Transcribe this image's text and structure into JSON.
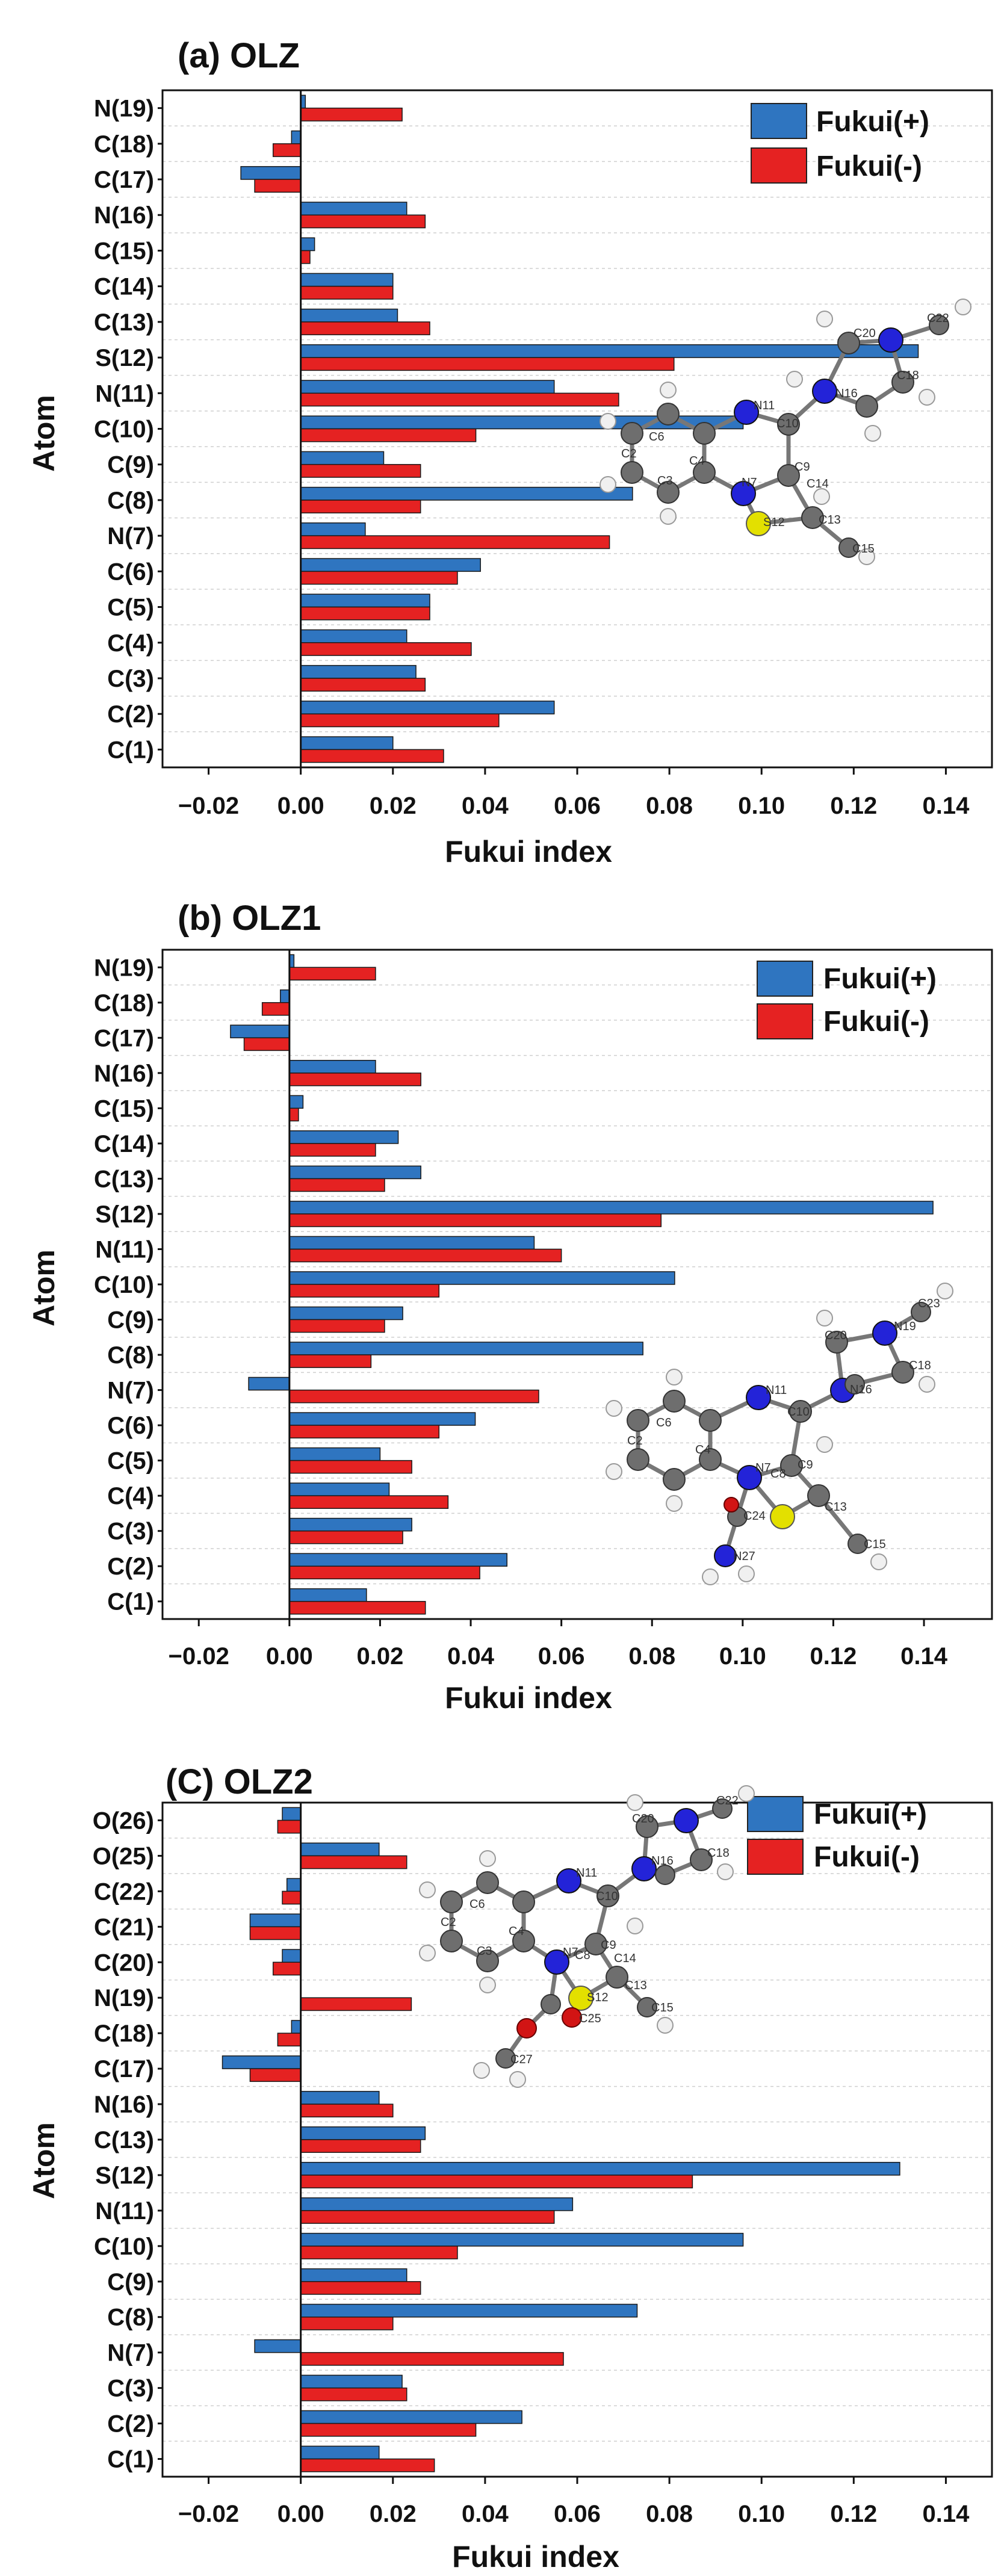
{
  "colors": {
    "fukui_plus": "#2f75c0",
    "fukui_minus": "#e52222",
    "grid": "#cfcfcf",
    "atom_c": "#6e6e6e",
    "atom_n": "#2323d8",
    "atom_s": "#e3e000",
    "atom_o": "#d21414",
    "atom_h": "#f0f0f0"
  },
  "chart_data": [
    {
      "type": "bar",
      "orientation": "horizontal",
      "title": "(a) OLZ",
      "xlabel": "Fukui index",
      "ylabel": "Atom",
      "xlim": [
        -0.03,
        0.15
      ],
      "xticks": [
        "-0.02",
        "0.00",
        "0.02",
        "0.04",
        "0.06",
        "0.08",
        "0.10",
        "0.12",
        "0.14"
      ],
      "grid": "horizontal dashed",
      "legend_position": "top-right",
      "categories": [
        "N(19)",
        "C(18)",
        "C(17)",
        "N(16)",
        "C(15)",
        "C(14)",
        "C(13)",
        "S(12)",
        "N(11)",
        "C(10)",
        "C(9)",
        "C(8)",
        "N(7)",
        "C(6)",
        "C(5)",
        "C(4)",
        "C(3)",
        "C(2)",
        "C(1)"
      ],
      "series": [
        {
          "name": "Fukui(+)",
          "values": [
            0.001,
            -0.002,
            -0.013,
            0.023,
            0.003,
            0.02,
            0.021,
            0.134,
            0.055,
            0.096,
            0.018,
            0.072,
            0.014,
            0.039,
            0.028,
            0.023,
            0.025,
            0.055,
            0.02
          ]
        },
        {
          "name": "Fukui(-)",
          "values": [
            0.022,
            -0.006,
            -0.01,
            0.027,
            0.002,
            0.02,
            0.028,
            0.081,
            0.069,
            0.038,
            0.026,
            0.026,
            0.067,
            0.034,
            0.028,
            0.037,
            0.027,
            0.043,
            0.031
          ]
        }
      ]
    },
    {
      "type": "bar",
      "orientation": "horizontal",
      "title": "(b) OLZ1",
      "xlabel": "Fukui index",
      "ylabel": "Atom",
      "xlim": [
        -0.028,
        0.155
      ],
      "xticks": [
        "-0.02",
        "0.00",
        "0.02",
        "0.04",
        "0.06",
        "0.08",
        "0.10",
        "0.12",
        "0.14"
      ],
      "grid": "horizontal dashed",
      "legend_position": "top-right",
      "categories": [
        "N(19)",
        "C(18)",
        "C(17)",
        "N(16)",
        "C(15)",
        "C(14)",
        "C(13)",
        "S(12)",
        "N(11)",
        "C(10)",
        "C(9)",
        "C(8)",
        "N(7)",
        "C(6)",
        "C(5)",
        "C(4)",
        "C(3)",
        "C(2)",
        "C(1)"
      ],
      "series": [
        {
          "name": "Fukui(+)",
          "values": [
            0.001,
            -0.002,
            -0.013,
            0.019,
            0.003,
            0.024,
            0.029,
            0.142,
            0.054,
            0.085,
            0.025,
            0.078,
            -0.009,
            0.041,
            0.02,
            0.022,
            0.027,
            0.048,
            0.017
          ]
        },
        {
          "name": "Fukui(-)",
          "values": [
            0.019,
            -0.006,
            -0.01,
            0.029,
            0.002,
            0.019,
            0.021,
            0.082,
            0.06,
            0.033,
            0.021,
            0.018,
            0.055,
            0.033,
            0.027,
            0.035,
            0.025,
            0.042,
            0.03
          ]
        }
      ]
    },
    {
      "type": "bar",
      "orientation": "horizontal",
      "title": "(C) OLZ2",
      "xlabel": "Fukui index",
      "ylabel": "Atom",
      "xlim": [
        -0.03,
        0.15
      ],
      "xticks": [
        "-0.02",
        "0.00",
        "0.02",
        "0.04",
        "0.06",
        "0.08",
        "0.10",
        "0.12",
        "0.14"
      ],
      "grid": "horizontal dashed",
      "legend_position": "top-right",
      "categories": [
        "O(26)",
        "O(25)",
        "C(22)",
        "C(21)",
        "C(20)",
        "N(19)",
        "C(18)",
        "C(17)",
        "N(16)",
        "C(13)",
        "S(12)",
        "N(11)",
        "C(10)",
        "C(9)",
        "C(8)",
        "N(7)",
        "C(3)",
        "C(2)",
        "C(1)"
      ],
      "series": [
        {
          "name": "Fukui(+)",
          "values": [
            -0.004,
            0.017,
            -0.003,
            -0.011,
            -0.004,
            0.0,
            -0.002,
            -0.017,
            0.017,
            0.027,
            0.13,
            0.059,
            0.096,
            0.023,
            0.073,
            -0.01,
            0.022,
            0.048,
            0.017
          ]
        },
        {
          "name": "Fukui(-)",
          "values": [
            -0.005,
            0.023,
            -0.004,
            -0.011,
            -0.006,
            0.024,
            -0.005,
            -0.011,
            0.02,
            0.026,
            0.085,
            0.055,
            0.034,
            0.026,
            0.02,
            0.057,
            0.023,
            0.038,
            0.029
          ]
        }
      ]
    }
  ],
  "molecules": [
    {
      "name": "olz-molecule",
      "atom_labels": [
        "C6",
        "N11",
        "N16",
        "C22",
        "C20",
        "C18",
        "C10",
        "C2",
        "C3",
        "C4",
        "N7",
        "C9",
        "C14",
        "C13",
        "S12",
        "C15"
      ]
    },
    {
      "name": "olz1-molecule",
      "atom_labels": [
        "C6",
        "N11",
        "C10",
        "C20",
        "C23",
        "N19",
        "C18",
        "N16",
        "C2",
        "C4",
        "N7",
        "C8",
        "C9",
        "C13",
        "C15",
        "C24",
        "N27"
      ]
    },
    {
      "name": "olz2-molecule",
      "atom_labels": [
        "C6",
        "N11",
        "N16",
        "C20",
        "C22",
        "C18",
        "C10",
        "C2",
        "C3",
        "C4",
        "N7",
        "C8",
        "C9",
        "C14",
        "C13",
        "S12",
        "C15",
        "C25",
        "C27"
      ]
    }
  ]
}
